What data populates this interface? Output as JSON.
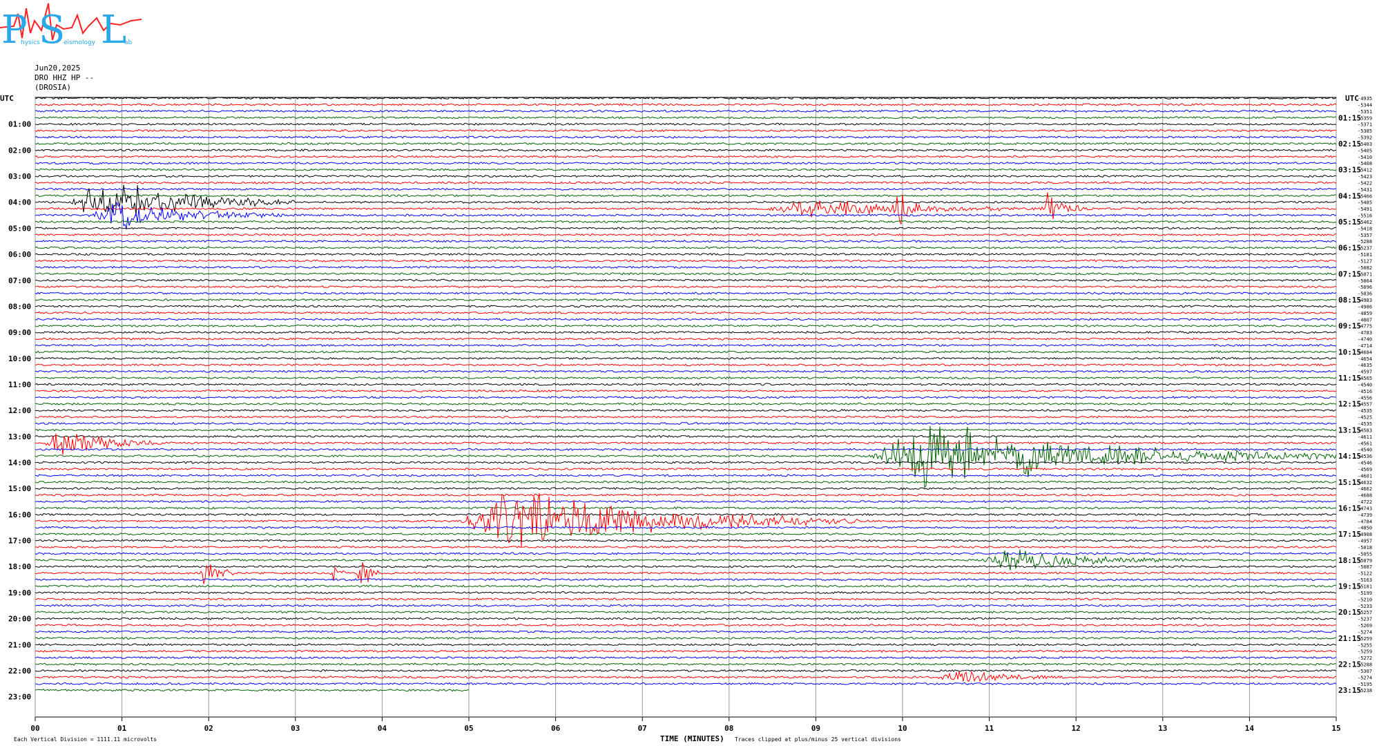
{
  "logo": {
    "letters": [
      "P",
      "S",
      "L"
    ],
    "subtext": [
      "hysics",
      "eismology",
      "ab"
    ],
    "colors": {
      "letters": "#2aa8e8",
      "wave": "#ff2020"
    }
  },
  "header": {
    "date": "Jun20,2025",
    "station": "DRO HHZ HP --",
    "site": "(DROSIA)"
  },
  "chart_data": {
    "type": "line",
    "title": "",
    "xlabel": "TIME (MINUTES)",
    "xlim": [
      0,
      15
    ],
    "x_ticks": [
      "00",
      "01",
      "02",
      "03",
      "04",
      "05",
      "06",
      "07",
      "08",
      "09",
      "10",
      "11",
      "12",
      "13",
      "14",
      "15"
    ],
    "utc_label_left": "UTC",
    "utc_label_right": "UTC",
    "hour_labels_left": [
      "01:00",
      "02:00",
      "03:00",
      "04:00",
      "05:00",
      "06:00",
      "07:00",
      "08:00",
      "09:00",
      "10:00",
      "11:00",
      "12:00",
      "13:00",
      "14:00",
      "15:00",
      "16:00",
      "17:00",
      "18:00",
      "19:00",
      "20:00",
      "21:00",
      "22:00",
      "23:00"
    ],
    "hour_labels_right": [
      "01:15",
      "02:15",
      "03:15",
      "04:15",
      "05:15",
      "06:15",
      "07:15",
      "08:15",
      "09:15",
      "10:15",
      "11:15",
      "12:15",
      "13:15",
      "14:15",
      "15:15",
      "16:15",
      "17:15",
      "18:15",
      "19:15",
      "20:15",
      "21:15",
      "22:15",
      "23:15"
    ],
    "trace_colors": [
      "#000000",
      "#ff0000",
      "#0000ff",
      "#006400"
    ],
    "trace_count": 92,
    "last_trace_end_minute": 5,
    "trace_means": [
      "-4935",
      "-5344",
      "-5351",
      "-5359",
      "-5371",
      "-5385",
      "-5392",
      "-5403",
      "-5405",
      "-5410",
      "-5408",
      "-5412",
      "-5423",
      "-5422",
      "-5431",
      "-5466",
      "-5485",
      "-5491",
      "-5516",
      "-5462",
      "-5418",
      "-5357",
      "-5288",
      "-5237",
      "-5181",
      "-5127",
      "-5082",
      "-5071",
      "-5064",
      "-5096",
      "-5036",
      "-4983",
      "-4986",
      "-4859",
      "-4807",
      "-4775",
      "-4783",
      "-4740",
      "-4714",
      "-4684",
      "-4654",
      "-4635",
      "-4597",
      "-4565",
      "-4540",
      "-4516",
      "-4556",
      "-4557",
      "-4535",
      "-4525",
      "-4535",
      "-4583",
      "-4611",
      "-4561",
      "-4540",
      "-4536",
      "-4546",
      "-4569",
      "-4601",
      "-4632",
      "-4662",
      "-4688",
      "-4722",
      "-4743",
      "-4739",
      "-4784",
      "-4850",
      "-4908",
      "-4957",
      "-5018",
      "-5055",
      "-5079",
      "-5087",
      "-5122",
      "-5163",
      "-5181",
      "-5199",
      "-5210",
      "-5233",
      "-5257",
      "-5237",
      "-5269",
      "-5274",
      "-5259",
      "-5255",
      "-5259",
      "-5272",
      "-5288",
      "-5307",
      "-5274",
      "-5195",
      "-5238"
    ],
    "events": [
      {
        "trace": 16,
        "start": 0.4,
        "end": 3.0,
        "amp": 1.0
      },
      {
        "trace": 18,
        "start": 0.6,
        "end": 3.0,
        "amp": 0.6
      },
      {
        "trace": 17,
        "start": 8.4,
        "end": 12.2,
        "amp": 0.35
      },
      {
        "trace": 17,
        "start": 9.9,
        "end": 10.2,
        "amp": 1.0
      },
      {
        "trace": 17,
        "start": 11.6,
        "end": 12.1,
        "amp": 0.6
      },
      {
        "trace": 53,
        "start": 0.1,
        "end": 1.5,
        "amp": 0.6
      },
      {
        "trace": 55,
        "start": 9.6,
        "end": 15.0,
        "amp": 1.4
      },
      {
        "trace": 65,
        "start": 4.9,
        "end": 9.5,
        "amp": 1.3
      },
      {
        "trace": 73,
        "start": 1.9,
        "end": 2.3,
        "amp": 1.0
      },
      {
        "trace": 73,
        "start": 3.4,
        "end": 3.6,
        "amp": 0.5
      },
      {
        "trace": 73,
        "start": 3.7,
        "end": 4.0,
        "amp": 0.8
      },
      {
        "trace": 71,
        "start": 10.9,
        "end": 13.3,
        "amp": 0.5
      },
      {
        "trace": 89,
        "start": 10.4,
        "end": 11.9,
        "amp": 0.3
      }
    ]
  },
  "footer": {
    "left_note": "Each Vertical Division = 1111.11 microvolts",
    "right_note": "Traces clipped at plus/minus 25 vertical divisions"
  }
}
